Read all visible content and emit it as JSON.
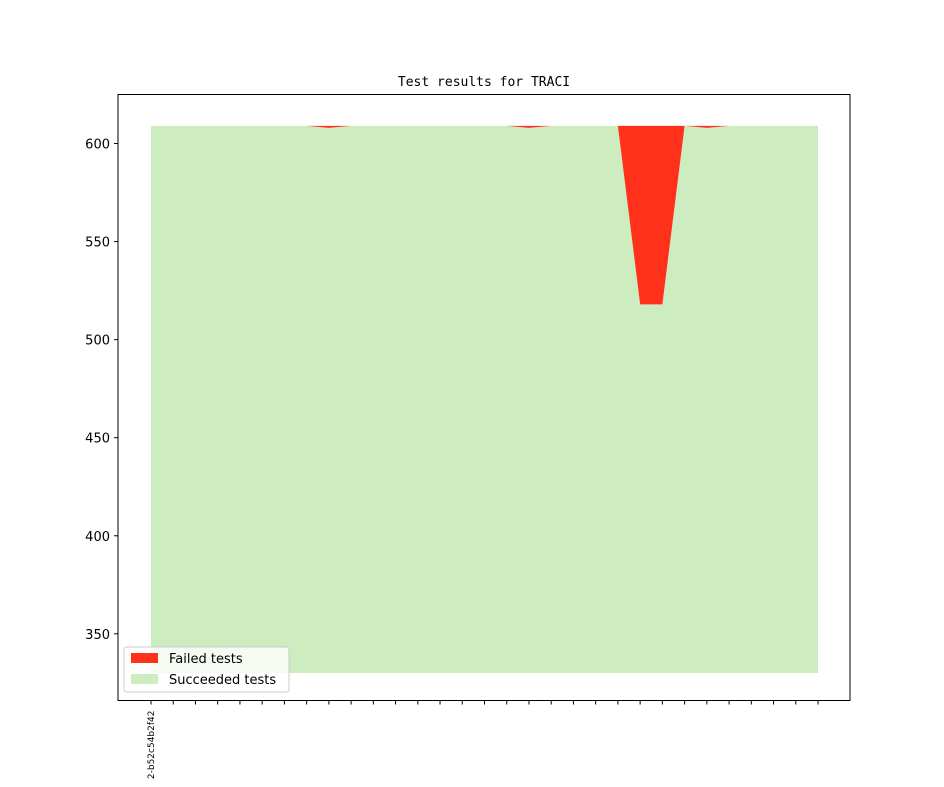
{
  "chart_data": {
    "type": "area",
    "title": "Test results for TRACI",
    "xlabel": "",
    "ylabel": "",
    "ylim": [
      316,
      625
    ],
    "yticks": [
      350,
      400,
      450,
      500,
      550,
      600
    ],
    "xtick_labels": [
      "2-b52c54b2f42"
    ],
    "grid": false,
    "legend_position": "lower-left",
    "x": [
      0,
      1,
      2,
      3,
      4,
      5,
      6,
      7,
      8,
      9,
      10,
      11,
      12,
      13,
      14,
      15,
      16,
      17,
      18,
      19,
      20,
      21,
      22,
      23,
      24,
      25,
      26,
      27,
      28,
      29,
      30
    ],
    "baseline": 330,
    "series": [
      {
        "name": "Succeeded tests",
        "color": "#cdecbf",
        "values": [
          609,
          609,
          609,
          609,
          609,
          609,
          609,
          609,
          608,
          609,
          609,
          609,
          609,
          609,
          609,
          609,
          609,
          608,
          609,
          609,
          609,
          609,
          518,
          518,
          609,
          608,
          609,
          609,
          609,
          609,
          609
        ]
      },
      {
        "name": "Failed tests",
        "color": "#ff311a",
        "values": [
          0,
          0,
          0,
          0,
          0,
          0,
          0,
          0,
          1,
          0,
          0,
          0,
          0,
          0,
          0,
          0,
          0,
          1,
          0,
          0,
          0,
          0,
          91,
          91,
          0,
          1,
          0,
          0,
          0,
          0,
          0
        ]
      }
    ]
  }
}
